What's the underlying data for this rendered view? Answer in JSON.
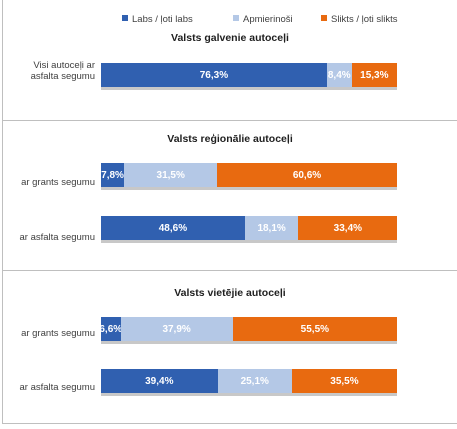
{
  "colors": {
    "labs": "#3060b0",
    "apmierinoss": "#b4c8e6",
    "slikts": "#e86a10"
  },
  "legend": {
    "labs": "Labs / ļoti labs",
    "apmierinoss": "Apmierinoši",
    "slikts": "Slikts / ļoti slikts"
  },
  "chart_data": [
    {
      "type": "bar",
      "stacked": true,
      "orientation": "horizontal",
      "title": "Valsts galvenie autoceļi",
      "categories": [
        "Visi autoceļi ar asfalta segumu"
      ],
      "series": [
        {
          "name": "Labs / ļoti labs",
          "values": [
            76.3
          ]
        },
        {
          "name": "Apmierinoši",
          "values": [
            8.4
          ]
        },
        {
          "name": "Slikts / ļoti slikts",
          "values": [
            15.3
          ]
        }
      ],
      "labels": [
        [
          "76,3%",
          "8,4%",
          "15,3%"
        ]
      ],
      "xlim": [
        0,
        100
      ]
    },
    {
      "type": "bar",
      "stacked": true,
      "orientation": "horizontal",
      "title": "Valsts reģionālie autoceļi",
      "categories": [
        "ar grants segumu",
        "ar asfalta segumu"
      ],
      "series": [
        {
          "name": "Labs / ļoti labs",
          "values": [
            7.8,
            48.6
          ]
        },
        {
          "name": "Apmierinoši",
          "values": [
            31.5,
            18.1
          ]
        },
        {
          "name": "Slikts / ļoti slikts",
          "values": [
            60.6,
            33.4
          ]
        }
      ],
      "labels": [
        [
          "7,8%",
          "31,5%",
          "60,6%"
        ],
        [
          "48,6%",
          "18,1%",
          "33,4%"
        ]
      ],
      "xlim": [
        0,
        100
      ]
    },
    {
      "type": "bar",
      "stacked": true,
      "orientation": "horizontal",
      "title": "Valsts vietējie autoceļi",
      "categories": [
        "ar grants segumu",
        "ar asfalta segumu"
      ],
      "series": [
        {
          "name": "Labs / ļoti labs",
          "values": [
            6.6,
            39.4
          ]
        },
        {
          "name": "Apmierinoši",
          "values": [
            37.9,
            25.1
          ]
        },
        {
          "name": "Slikts / ļoti slikts",
          "values": [
            55.5,
            35.5
          ]
        }
      ],
      "labels": [
        [
          "6,6%",
          "37,9%",
          "55,5%"
        ],
        [
          "39,4%",
          "25,1%",
          "35,5%"
        ]
      ],
      "xlim": [
        0,
        100
      ]
    }
  ]
}
